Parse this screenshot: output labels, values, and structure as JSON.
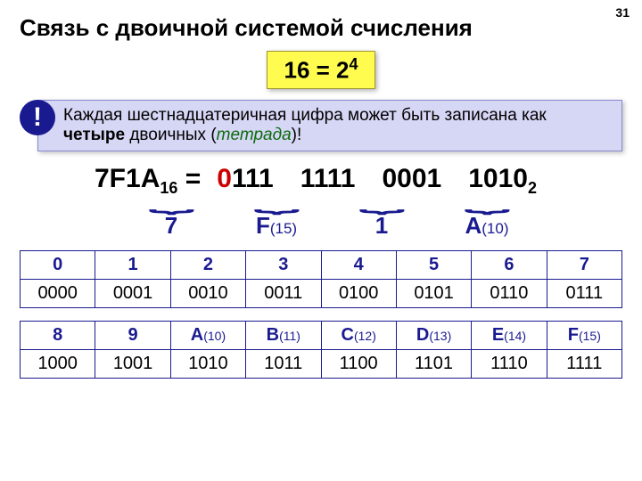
{
  "page_number": "31",
  "title": "Связь с двоичной системой счисления",
  "formula_html": "16 = 2<sup>4</sup>",
  "note": {
    "excl": "!",
    "pre": "Каждая шестнадцатеричная цифра может быть записана как ",
    "bold": "четыре",
    "mid": " двоичных (",
    "ital": "тетрада",
    "post": ")!"
  },
  "equation": {
    "lhs_html": "7F1A<sub>16</sub> = ",
    "tetrads": [
      {
        "red": "0",
        "rest": "111"
      },
      {
        "red": "",
        "rest": "1111"
      },
      {
        "red": "",
        "rest": "0001"
      },
      {
        "red": "",
        "rest": "1010"
      }
    ],
    "rhs_sub": "2",
    "labels": [
      {
        "main": "7",
        "small": ""
      },
      {
        "main": "F",
        "small": "(15)"
      },
      {
        "main": "1",
        "small": ""
      },
      {
        "main": "A",
        "small": "(10)"
      }
    ]
  },
  "table1": {
    "headers": [
      {
        "main": "0",
        "small": ""
      },
      {
        "main": "1",
        "small": ""
      },
      {
        "main": "2",
        "small": ""
      },
      {
        "main": "3",
        "small": ""
      },
      {
        "main": "4",
        "small": ""
      },
      {
        "main": "5",
        "small": ""
      },
      {
        "main": "6",
        "small": ""
      },
      {
        "main": "7",
        "small": ""
      }
    ],
    "values": [
      "0000",
      "0001",
      "0010",
      "0011",
      "0100",
      "0101",
      "0110",
      "0111"
    ]
  },
  "table2": {
    "headers": [
      {
        "main": "8",
        "small": ""
      },
      {
        "main": "9",
        "small": ""
      },
      {
        "main": "A",
        "small": "(10)"
      },
      {
        "main": "B",
        "small": "(11)"
      },
      {
        "main": "C",
        "small": "(12)"
      },
      {
        "main": "D",
        "small": "(13)"
      },
      {
        "main": "E",
        "small": "(14)"
      },
      {
        "main": "F",
        "small": "(15)"
      }
    ],
    "values": [
      "1000",
      "1001",
      "1010",
      "1011",
      "1100",
      "1101",
      "1110",
      "1111"
    ]
  },
  "colors": {
    "accent": "#1a1a90",
    "highlight_bg": "#fffc4f",
    "note_bg": "#d6d6f5",
    "red": "#c00",
    "green": "#0b6b0b"
  }
}
